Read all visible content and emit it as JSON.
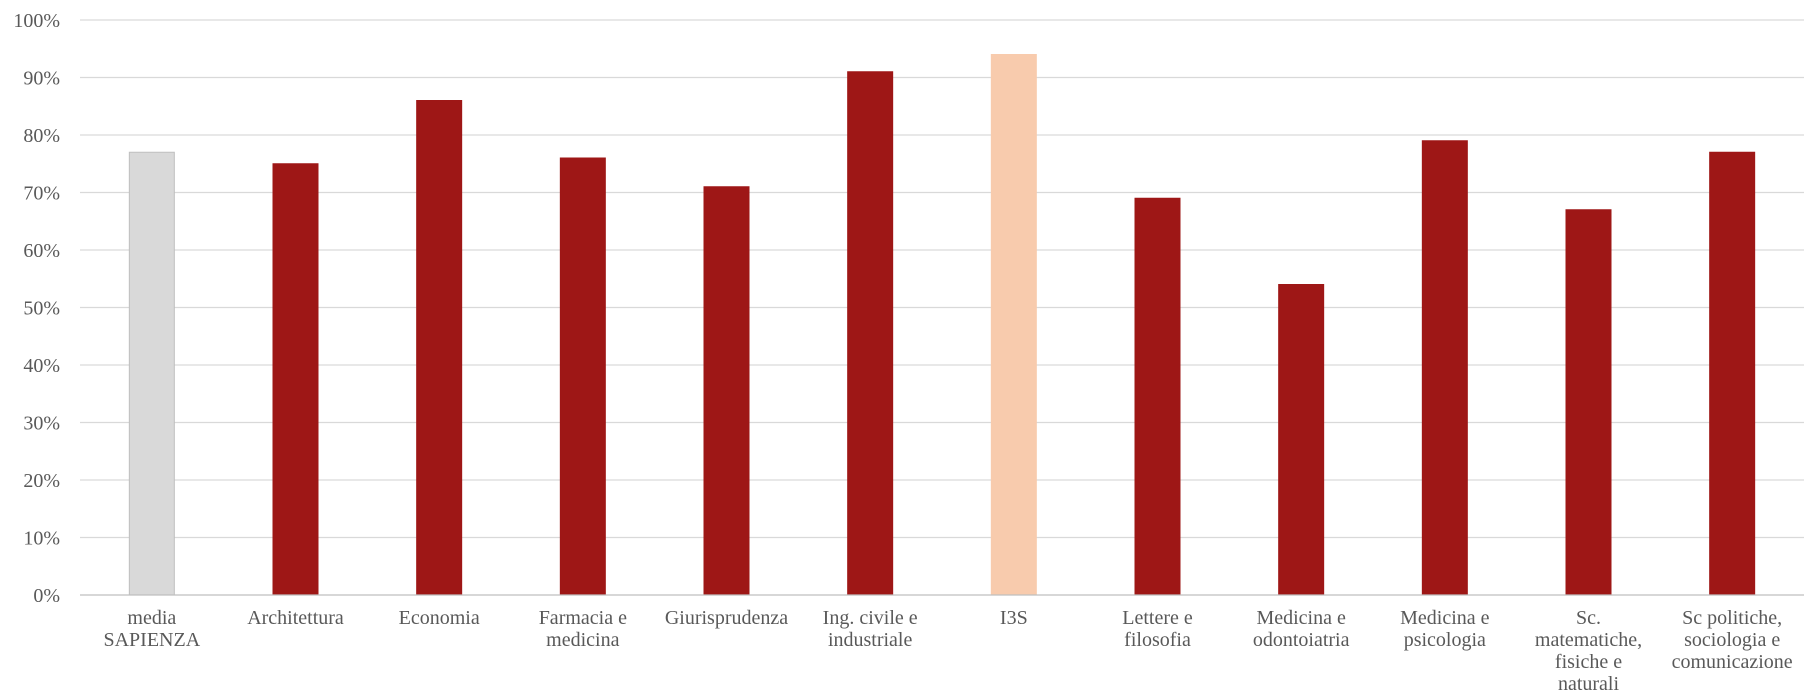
{
  "chart_data": {
    "type": "bar",
    "categories": [
      [
        "media",
        "SAPIENZA"
      ],
      [
        "Architettura"
      ],
      [
        "Economia"
      ],
      [
        "Farmacia e",
        "medicina"
      ],
      [
        "Giurisprudenza"
      ],
      [
        "Ing. civile e",
        "industriale"
      ],
      [
        "I3S"
      ],
      [
        "Lettere e",
        "filosofia"
      ],
      [
        "Medicina e",
        "odontoiatria"
      ],
      [
        "Medicina e",
        "psicologia"
      ],
      [
        "Sc.",
        "matematiche,",
        "fisiche e",
        "naturali"
      ],
      [
        "Sc politiche,",
        "sociologia e",
        "comunicazione"
      ]
    ],
    "values": [
      77,
      75,
      86,
      76,
      71,
      91,
      94,
      69,
      54,
      79,
      67,
      77
    ],
    "colors": [
      "#d9d9d9",
      "#9e1716",
      "#9e1716",
      "#9e1716",
      "#9e1716",
      "#9e1716",
      "#f8cbad",
      "#9e1716",
      "#9e1716",
      "#9e1716",
      "#9e1716",
      "#9e1716"
    ],
    "bar_outline_colors": [
      "#bfbfbf",
      "#9e1716",
      "#9e1716",
      "#9e1716",
      "#9e1716",
      "#9e1716",
      "#f8cbad",
      "#9e1716",
      "#9e1716",
      "#9e1716",
      "#9e1716",
      "#9e1716"
    ],
    "ylim": [
      0,
      100
    ],
    "yticks": [
      0,
      10,
      20,
      30,
      40,
      50,
      60,
      70,
      80,
      90,
      100
    ],
    "ytick_labels": [
      "0%",
      "10%",
      "20%",
      "30%",
      "40%",
      "50%",
      "60%",
      "70%",
      "80%",
      "90%",
      "100%"
    ],
    "grid": true,
    "legend": "none",
    "title": "",
    "xlabel": "",
    "ylabel": ""
  }
}
